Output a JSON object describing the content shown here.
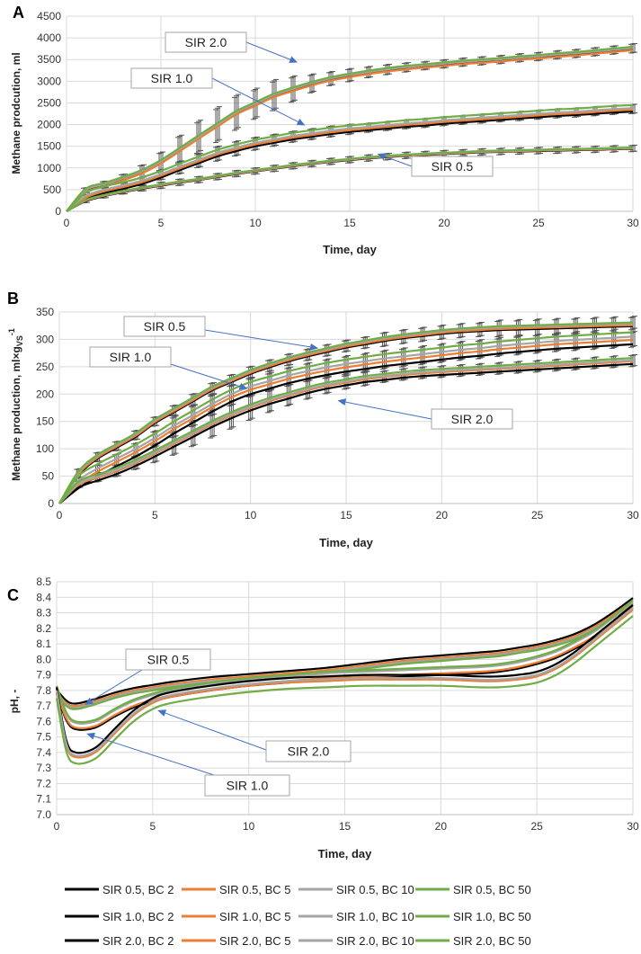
{
  "colors": {
    "BC 2": "#000000",
    "BC 5": "#ed7d31",
    "BC 10": "#a5a5a5",
    "BC 50": "#70ad47",
    "arrow": "#4472c4",
    "grid": "#d9d9d9",
    "errorbar": "#555555"
  },
  "legend": {
    "entries": [
      "SIR 0.5, BC 2",
      "SIR 0.5, BC 5",
      "SIR 0.5, BC 10",
      "SIR 0.5, BC 50",
      "SIR 1.0, BC 2",
      "SIR 1.0, BC 5",
      "SIR 1.0, BC 10",
      "SIR 1.0, BC 50",
      "SIR 2.0, BC 2",
      "SIR 2.0, BC 5",
      "SIR 2.0, BC 10",
      "SIR 2.0, BC 50"
    ]
  },
  "chart_data": [
    {
      "panel": "A",
      "type": "line",
      "xlabel": "Time, day",
      "ylabel": "Methane prodcution, ml",
      "xlim": [
        0,
        30
      ],
      "ylim": [
        0,
        4500
      ],
      "xticks": [
        0,
        5,
        10,
        15,
        20,
        25,
        30
      ],
      "yticks": [
        0,
        500,
        1000,
        1500,
        2000,
        2500,
        3000,
        3500,
        4000,
        4500
      ],
      "grid": true,
      "x": [
        0,
        1,
        2,
        3,
        4,
        5,
        6,
        7,
        8,
        9,
        10,
        11,
        12,
        13,
        14,
        15,
        16,
        17,
        18,
        19,
        20,
        21,
        22,
        23,
        24,
        25,
        26,
        27,
        28,
        29,
        30
      ],
      "groups": [
        {
          "name": "SIR 2.0",
          "mean": [
            0,
            480,
            620,
            760,
            920,
            1150,
            1430,
            1720,
            2000,
            2280,
            2480,
            2680,
            2820,
            2950,
            3060,
            3140,
            3210,
            3270,
            3320,
            3360,
            3400,
            3440,
            3470,
            3500,
            3540,
            3570,
            3610,
            3640,
            3680,
            3720,
            3760
          ],
          "err": [
            0,
            60,
            70,
            90,
            140,
            200,
            300,
            350,
            380,
            380,
            330,
            330,
            280,
            200,
            150,
            140,
            120,
            110,
            100,
            90,
            90,
            90,
            90,
            90,
            90,
            90,
            90,
            90,
            90,
            90,
            100
          ],
          "offsets": {
            "BC 2": -25,
            "BC 5": -45,
            "BC 10": 5,
            "BC 50": 35
          }
        },
        {
          "name": "SIR 1.0",
          "mean": [
            0,
            330,
            480,
            580,
            690,
            840,
            1010,
            1170,
            1330,
            1450,
            1560,
            1640,
            1720,
            1780,
            1840,
            1890,
            1930,
            1970,
            2010,
            2040,
            2080,
            2110,
            2140,
            2170,
            2200,
            2230,
            2260,
            2280,
            2310,
            2340,
            2360
          ],
          "err": [
            0,
            50,
            60,
            70,
            90,
            110,
            140,
            150,
            160,
            160,
            140,
            130,
            120,
            120,
            120,
            110,
            100,
            100,
            100,
            100,
            100,
            100,
            100,
            100,
            100,
            100,
            100,
            100,
            100,
            100,
            100
          ],
          "offsets": {
            "BC 2": -60,
            "BC 5": -20,
            "BC 10": 20,
            "BC 50": 90
          }
        },
        {
          "name": "SIR 0.5",
          "mean": [
            0,
            240,
            360,
            450,
            530,
            600,
            670,
            730,
            800,
            870,
            930,
            990,
            1050,
            1100,
            1150,
            1190,
            1230,
            1260,
            1290,
            1310,
            1330,
            1350,
            1370,
            1380,
            1390,
            1400,
            1410,
            1420,
            1430,
            1440,
            1450
          ],
          "err": [
            0,
            40,
            50,
            50,
            60,
            70,
            70,
            70,
            70,
            70,
            70,
            70,
            70,
            70,
            70,
            70,
            70,
            70,
            70,
            70,
            70,
            70,
            70,
            70,
            70,
            70,
            70,
            70,
            70,
            70,
            70
          ],
          "offsets": {
            "BC 2": -10,
            "BC 5": 0,
            "BC 10": 10,
            "BC 50": 20
          }
        }
      ],
      "annotations": [
        {
          "text": "SIR 2.0",
          "target": [
            12.2,
            3440
          ]
        },
        {
          "text": "SIR 1.0",
          "target": [
            12.6,
            1990
          ]
        },
        {
          "text": "SIR 0.5",
          "target": [
            16.5,
            1320
          ]
        }
      ]
    },
    {
      "panel": "B",
      "type": "line",
      "xlabel": "Time, day",
      "ylabel": "Methane production, ml×g",
      "ylabel_sub": "VS",
      "ylabel_sup": "-1",
      "xlim": [
        0,
        30
      ],
      "ylim": [
        0,
        350
      ],
      "xticks": [
        0,
        5,
        10,
        15,
        20,
        25,
        30
      ],
      "yticks": [
        0,
        50,
        100,
        150,
        200,
        250,
        300,
        350
      ],
      "grid": true,
      "x": [
        0,
        1,
        2,
        3,
        4,
        5,
        6,
        7,
        8,
        9,
        10,
        11,
        12,
        13,
        14,
        15,
        16,
        17,
        18,
        19,
        20,
        21,
        22,
        23,
        24,
        25,
        26,
        27,
        28,
        29,
        30
      ],
      "groups": [
        {
          "name": "SIR 0.5",
          "mean": [
            0,
            55,
            85,
            105,
            125,
            150,
            170,
            190,
            210,
            225,
            240,
            252,
            263,
            272,
            280,
            288,
            294,
            300,
            305,
            309,
            313,
            316,
            318,
            320,
            321,
            322,
            323,
            324,
            325,
            326,
            327
          ],
          "err": [
            0,
            8,
            8,
            8,
            8,
            8,
            9,
            10,
            10,
            10,
            10,
            10,
            10,
            10,
            10,
            10,
            10,
            12,
            12,
            12,
            12,
            12,
            12,
            14,
            14,
            14,
            14,
            14,
            14,
            14,
            14
          ],
          "offsets": {
            "BC 2": -3,
            "BC 5": -1,
            "BC 10": 2,
            "BC 50": 4
          }
        },
        {
          "name": "SIR 1.0",
          "mean": [
            0,
            40,
            62,
            80,
            98,
            118,
            140,
            160,
            180,
            198,
            212,
            222,
            232,
            240,
            247,
            253,
            258,
            263,
            267,
            271,
            275,
            279,
            282,
            286,
            289,
            292,
            295,
            297,
            299,
            301,
            303
          ],
          "err": [
            0,
            8,
            8,
            10,
            12,
            14,
            18,
            18,
            18,
            18,
            16,
            16,
            16,
            16,
            16,
            16,
            16,
            16,
            16,
            16,
            16,
            16,
            16,
            16,
            16,
            16,
            16,
            16,
            16,
            16,
            16
          ],
          "offsets": {
            "BC 2": -12,
            "BC 5": -4,
            "BC 10": 2,
            "BC 50": 10
          }
        },
        {
          "name": "SIR 2.0",
          "mean": [
            0,
            35,
            48,
            60,
            75,
            92,
            110,
            128,
            146,
            162,
            176,
            188,
            198,
            208,
            216,
            222,
            228,
            232,
            236,
            239,
            241,
            243,
            245,
            247,
            249,
            251,
            253,
            255,
            257,
            259,
            261
          ],
          "err": [
            0,
            6,
            8,
            10,
            12,
            16,
            20,
            22,
            24,
            24,
            22,
            20,
            18,
            16,
            14,
            12,
            12,
            10,
            10,
            10,
            10,
            10,
            10,
            10,
            10,
            10,
            10,
            10,
            10,
            10,
            10
          ],
          "offsets": {
            "BC 2": -6,
            "BC 5": -1,
            "BC 10": 1,
            "BC 50": 5
          }
        }
      ],
      "annotations": [
        {
          "text": "SIR 0.5",
          "target": [
            13.5,
            284
          ]
        },
        {
          "text": "SIR 1.0",
          "target": [
            9.8,
            210
          ]
        },
        {
          "text": "SIR 2.0",
          "target": [
            14.6,
            188
          ]
        }
      ]
    },
    {
      "panel": "C",
      "type": "line",
      "xlabel": "Time, day",
      "ylabel": "pH, -",
      "xlim": [
        0,
        30
      ],
      "ylim": [
        7.0,
        8.5
      ],
      "xticks": [
        0,
        5,
        10,
        15,
        20,
        25,
        30
      ],
      "yticks": [
        7.0,
        7.1,
        7.2,
        7.3,
        7.4,
        7.5,
        7.6,
        7.7,
        7.8,
        7.9,
        8.0,
        8.1,
        8.2,
        8.3,
        8.4,
        8.5
      ],
      "grid": true,
      "x": [
        0,
        0.5,
        1,
        2,
        3,
        4,
        5,
        6,
        8,
        10,
        12,
        14,
        16,
        18,
        20,
        22,
        23,
        24,
        25,
        26,
        27,
        28,
        29,
        30
      ],
      "groups": [
        {
          "name": "SIR 0.5",
          "mean": [
            7.79,
            7.72,
            7.7,
            7.73,
            7.77,
            7.8,
            7.82,
            7.84,
            7.87,
            7.89,
            7.91,
            7.93,
            7.96,
            7.99,
            8.01,
            8.03,
            8.04,
            8.06,
            8.08,
            8.11,
            8.15,
            8.21,
            8.29,
            8.38
          ],
          "offsets": {
            "BC 2": 0.015,
            "BC 5": 0.0,
            "BC 10": -0.01,
            "BC 50": -0.02
          }
        },
        {
          "name": "SIR 1.0",
          "mean": [
            7.79,
            7.62,
            7.56,
            7.57,
            7.64,
            7.7,
            7.74,
            7.77,
            7.81,
            7.84,
            7.86,
            7.88,
            7.89,
            7.9,
            7.91,
            7.92,
            7.93,
            7.95,
            7.98,
            8.02,
            8.08,
            8.15,
            8.24,
            8.34
          ],
          "offsets": {
            "BC 2": -0.01,
            "BC 5": 0.0,
            "BC 10": 0.03,
            "BC 50": 0.04
          }
        },
        {
          "name": "SIR 2.0",
          "mean": [
            7.79,
            7.45,
            7.37,
            7.4,
            7.52,
            7.64,
            7.72,
            7.76,
            7.8,
            7.83,
            7.85,
            7.86,
            7.87,
            7.87,
            7.87,
            7.86,
            7.86,
            7.87,
            7.89,
            7.94,
            8.02,
            8.12,
            8.22,
            8.32
          ],
          "offsets": {
            "BC 2": 0.03,
            "BC 5": 0.0,
            "BC 10": 0.01,
            "BC 50": -0.04
          }
        }
      ],
      "annotations": [
        {
          "text": "SIR 0.5",
          "target": [
            1.5,
            7.71
          ]
        },
        {
          "text": "SIR 2.0",
          "target": [
            5.3,
            7.67
          ]
        },
        {
          "text": "SIR 1.0",
          "target": [
            1.6,
            7.52
          ]
        }
      ]
    }
  ]
}
